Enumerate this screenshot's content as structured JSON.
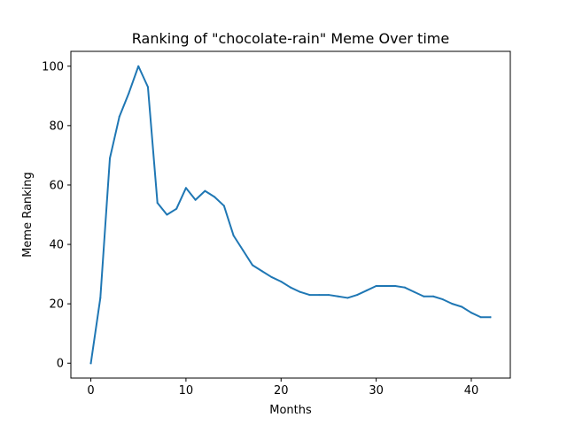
{
  "chart_data": {
    "type": "line",
    "title": "Ranking of \"chocolate-rain\" Meme Over time",
    "xlabel": "Months",
    "ylabel": "Meme Ranking",
    "xlim": [
      -2.1,
      44.1
    ],
    "ylim": [
      -5,
      105
    ],
    "xticks": [
      0,
      10,
      20,
      30,
      40
    ],
    "yticks": [
      0,
      20,
      40,
      60,
      80,
      100
    ],
    "grid": false,
    "line_color": "#1f77b4",
    "series": [
      {
        "x": [
          0,
          1,
          2,
          3,
          4,
          5,
          6,
          7,
          8,
          9,
          10,
          11,
          12,
          13,
          14,
          15,
          16,
          17,
          18,
          19,
          20,
          21,
          22,
          23,
          24,
          25,
          26,
          27,
          28,
          29,
          30,
          31,
          32,
          33,
          34,
          35,
          36,
          37,
          38,
          39,
          40,
          41,
          42
        ],
        "values": [
          0,
          22,
          69,
          83,
          91,
          100,
          93,
          54,
          50,
          52,
          59,
          55,
          58,
          56,
          53,
          43,
          38,
          33,
          31,
          29,
          27.5,
          25.5,
          24,
          23,
          23,
          23,
          22.5,
          22,
          23,
          24.5,
          26,
          26,
          26,
          25.5,
          24,
          22.5,
          22.5,
          21.5,
          20,
          19,
          17,
          15.5,
          15.5
        ]
      }
    ]
  }
}
